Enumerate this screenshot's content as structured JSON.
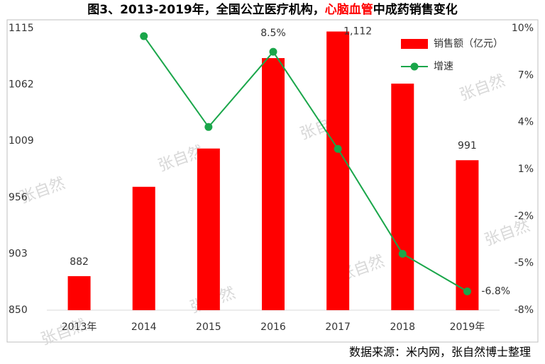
{
  "chart_data": {
    "type": "bar_line",
    "title_parts": [
      "图3、2013-2019年，全国公立医疗机构，",
      "心脑血管",
      "中成药销售变化"
    ],
    "categories": [
      "2013年",
      "2014",
      "2015",
      "2016",
      "2017",
      "2018",
      "2019年"
    ],
    "series": [
      {
        "name": "销售额（亿元）",
        "type": "bar",
        "color": "#ff0000",
        "values": [
          882,
          966,
          1002,
          1087,
          1112,
          1063,
          991
        ],
        "value_labels": [
          "882",
          null,
          null,
          null,
          "1,112",
          null,
          "991"
        ]
      },
      {
        "name": "增速",
        "type": "line",
        "axis": "y2",
        "color": "#1aa64a",
        "values": [
          null,
          9.5,
          3.7,
          8.5,
          2.3,
          -4.4,
          -6.8
        ],
        "value_labels": [
          null,
          null,
          null,
          "8.5%",
          null,
          null,
          "-6.8%"
        ]
      }
    ],
    "ylim": [
      850,
      1115
    ],
    "yticks": [
      850,
      903,
      956,
      1009,
      1062,
      1115
    ],
    "y2lim": [
      -8,
      10
    ],
    "y2ticks": [
      {
        "value": -8,
        "label": "-8%"
      },
      {
        "value": -5,
        "label": "-5%"
      },
      {
        "value": -2,
        "label": "-2%"
      },
      {
        "value": 1,
        "label": "1%"
      },
      {
        "value": 4,
        "label": "4%"
      },
      {
        "value": 7,
        "label": "7%"
      },
      {
        "value": 10,
        "label": "10%"
      }
    ],
    "legend": "upper right",
    "watermark": "张自然",
    "source": "数据来源：米内网，张自然博士整理"
  }
}
